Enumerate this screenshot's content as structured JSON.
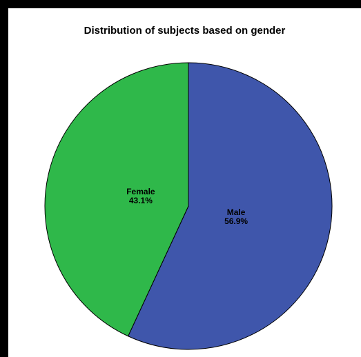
{
  "chart_data": {
    "type": "pie",
    "title": "Distribution of subjects based on gender",
    "slices": [
      {
        "label": "Male",
        "value": 56.9,
        "value_label": "56.9%",
        "color": "#3f56ab"
      },
      {
        "label": "Female",
        "value": 43.1,
        "value_label": "43.1%",
        "color": "#2fb84a"
      }
    ],
    "start_angle": "12 o'clock",
    "direction": "clockwise",
    "slice_outline_color": "#000000",
    "legend": "none"
  }
}
